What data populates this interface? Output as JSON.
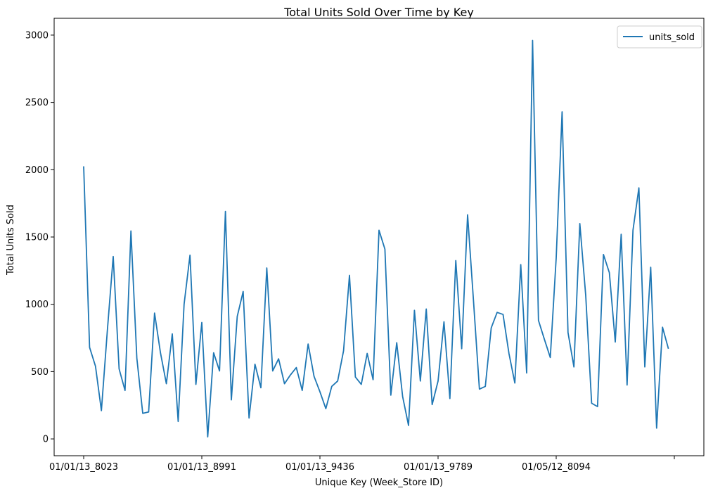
{
  "chart_data": {
    "type": "line",
    "title": "Total Units Sold Over Time by Key",
    "xlabel": "Unique Key (Week_Store ID)",
    "ylabel": "Total Units Sold",
    "xtick_labels": [
      "01/01/13_8023",
      "01/01/13_8991",
      "01/01/13_9436",
      "01/01/13_9789",
      "01/05/12_8094",
      ""
    ],
    "xtick_positions": [
      0,
      20,
      40,
      60,
      80,
      100
    ],
    "yticks": [
      0,
      500,
      1000,
      1500,
      2000,
      2500,
      3000
    ],
    "ylim": [
      -125,
      3125
    ],
    "xlim": [
      -5,
      105
    ],
    "grid": false,
    "legend_position": "top-right",
    "series": [
      {
        "name": "units_sold",
        "color": "#1f77b4",
        "values": [
          2025,
          680,
          540,
          210,
          800,
          1355,
          520,
          360,
          1545,
          600,
          190,
          200,
          935,
          640,
          410,
          780,
          130,
          1000,
          1365,
          405,
          865,
          15,
          640,
          505,
          1690,
          290,
          910,
          1095,
          155,
          555,
          380,
          1270,
          505,
          595,
          410,
          475,
          530,
          360,
          705,
          465,
          350,
          225,
          390,
          430,
          655,
          1215,
          460,
          405,
          635,
          440,
          1550,
          1410,
          325,
          715,
          315,
          100,
          955,
          430,
          965,
          255,
          430,
          870,
          300,
          1325,
          670,
          1665,
          1025,
          370,
          390,
          825,
          940,
          925,
          635,
          415,
          1295,
          490,
          2960,
          880,
          740,
          605,
          1345,
          2430,
          790,
          535,
          1600,
          1065,
          265,
          240,
          1370,
          1235,
          720,
          1520,
          400,
          1550,
          1865,
          535,
          1275,
          80,
          830,
          670
        ]
      }
    ]
  }
}
